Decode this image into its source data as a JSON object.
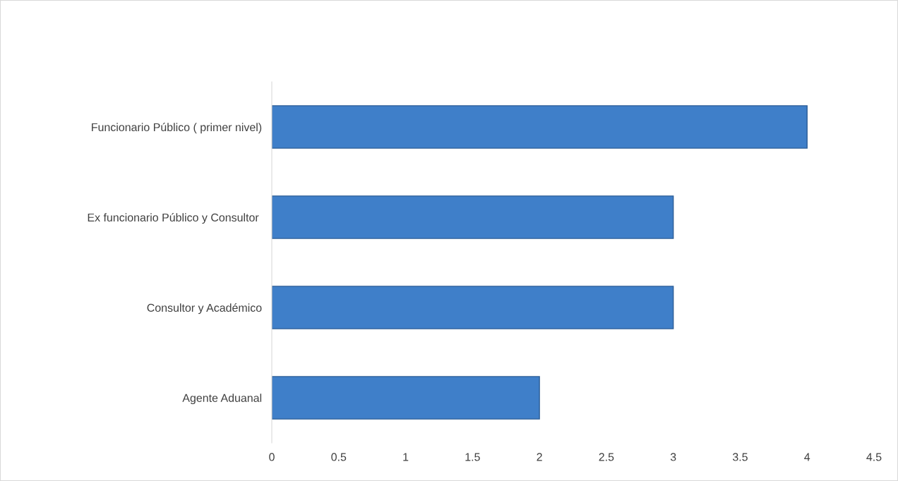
{
  "chart_data": {
    "type": "bar",
    "orientation": "horizontal",
    "categories": [
      "Funcionario Público ( primer nivel)",
      "Ex funcionario Público y Consultor ",
      "Consultor y Académico",
      "Agente Aduanal"
    ],
    "values": [
      4,
      3,
      3,
      2
    ],
    "color": "#3f7fc9",
    "xlim": [
      0,
      4.5
    ],
    "xticks": [
      0,
      0.5,
      1,
      1.5,
      2,
      2.5,
      3,
      3.5,
      4,
      4.5
    ],
    "grid": false
  }
}
